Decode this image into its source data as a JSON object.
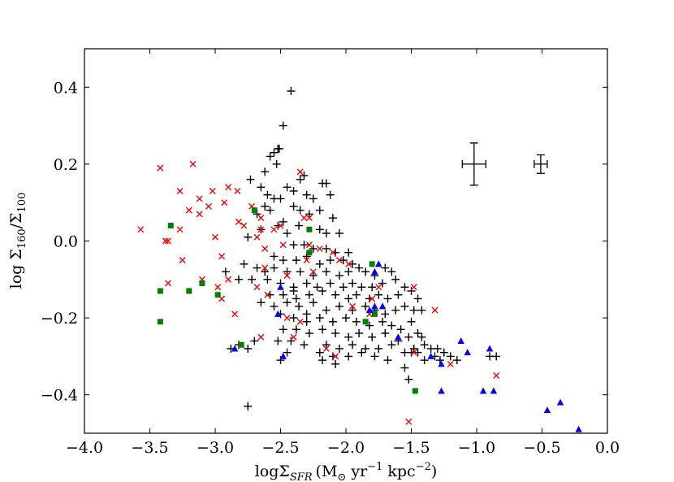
{
  "chart_data": {
    "type": "scatter",
    "title": "",
    "xlabel": "logΣ_SFR (M_⊙ yr^-1 kpc^-2)",
    "ylabel": "log Σ_160/Σ_100",
    "xlim": [
      -4.0,
      0.0
    ],
    "ylim": [
      -0.5,
      0.5
    ],
    "x_ticks": [
      -4.0,
      -3.5,
      -3.0,
      -2.5,
      -2.0,
      -1.5,
      -1.0,
      -0.5,
      0.0
    ],
    "x_tick_labels": [
      "−4.0",
      "−3.5",
      "−3.0",
      "−2.5",
      "−2.0",
      "−1.5",
      "−1.0",
      "−0.5",
      "0.0"
    ],
    "y_ticks": [
      -0.4,
      -0.2,
      0.0,
      0.2,
      0.4
    ],
    "y_tick_labels": [
      "−0.4",
      "−0.2",
      "0.0",
      "0.2",
      "0.4"
    ],
    "grid": false,
    "colors": {
      "black": "#000000",
      "red": "#ff0000",
      "green": "#007f00",
      "blue": "#0000ff"
    },
    "x_label_parts": {
      "main": "logΣ",
      "sub": "SFR",
      "unit_open": "(M",
      "sun": "⊙",
      "unit_yr": " yr",
      "exp1": "−1",
      "unit_kpc": " kpc",
      "exp2": "−2",
      "unit_close": ")"
    },
    "y_label_parts": {
      "main": "log Σ",
      "sub1": "160",
      "slash": "/Σ",
      "sub2": "100"
    },
    "error_bars": [
      {
        "x": -1.02,
        "y": 0.2,
        "xerr": 0.09,
        "yerr": 0.055
      },
      {
        "x": -0.51,
        "y": 0.2,
        "xerr": 0.05,
        "yerr": 0.024
      }
    ],
    "series": [
      {
        "name": "black plus",
        "marker": "plus",
        "color": "#000000",
        "points": [
          [
            -2.42,
            0.39
          ],
          [
            -2.48,
            0.3
          ],
          [
            -2.52,
            0.24
          ],
          [
            -2.55,
            0.23
          ],
          [
            -2.51,
            0.24
          ],
          [
            -2.58,
            0.22
          ],
          [
            -2.53,
            0.2
          ],
          [
            -2.62,
            0.18
          ],
          [
            -2.35,
            0.16
          ],
          [
            -2.32,
            0.17
          ],
          [
            -2.18,
            0.15
          ],
          [
            -2.15,
            0.15
          ],
          [
            -2.73,
            0.16
          ],
          [
            -2.65,
            0.14
          ],
          [
            -2.45,
            0.14
          ],
          [
            -2.4,
            0.13
          ],
          [
            -2.3,
            0.12
          ],
          [
            -2.25,
            0.11
          ],
          [
            -2.12,
            0.12
          ],
          [
            -2.6,
            0.12
          ],
          [
            -2.55,
            0.11
          ],
          [
            -2.5,
            0.11
          ],
          [
            -2.62,
            0.09
          ],
          [
            -2.68,
            0.07
          ],
          [
            -2.58,
            0.08
          ],
          [
            -2.4,
            0.09
          ],
          [
            -2.35,
            0.08
          ],
          [
            -2.28,
            0.07
          ],
          [
            -2.2,
            0.08
          ],
          [
            -2.1,
            0.06
          ],
          [
            -2.48,
            0.05
          ],
          [
            -2.52,
            0.04
          ],
          [
            -2.36,
            0.04
          ],
          [
            -2.65,
            0.03
          ],
          [
            -2.2,
            0.03
          ],
          [
            -2.15,
            0.02
          ],
          [
            -2.45,
            0.02
          ],
          [
            -2.05,
            0.02
          ],
          [
            -2.75,
            0.01
          ],
          [
            -2.4,
            -0.01
          ],
          [
            -2.32,
            -0.01
          ],
          [
            -2.25,
            -0.02
          ],
          [
            -2.15,
            -0.02
          ],
          [
            -2.08,
            -0.03
          ],
          [
            -1.98,
            -0.03
          ],
          [
            -2.55,
            -0.04
          ],
          [
            -2.48,
            -0.05
          ],
          [
            -2.38,
            -0.05
          ],
          [
            -2.3,
            -0.04
          ],
          [
            -2.2,
            -0.06
          ],
          [
            -2.12,
            -0.05
          ],
          [
            -2.02,
            -0.05
          ],
          [
            -1.95,
            -0.06
          ],
          [
            -2.78,
            -0.06
          ],
          [
            -2.68,
            -0.07
          ],
          [
            -2.62,
            -0.08
          ],
          [
            -2.55,
            -0.07
          ],
          [
            -2.45,
            -0.08
          ],
          [
            -2.35,
            -0.08
          ],
          [
            -2.25,
            -0.09
          ],
          [
            -2.15,
            -0.08
          ],
          [
            -2.05,
            -0.09
          ],
          [
            -1.98,
            -0.08
          ],
          [
            -1.9,
            -0.07
          ],
          [
            -1.85,
            -0.08
          ],
          [
            -1.78,
            -0.09
          ],
          [
            -1.7,
            -0.07
          ],
          [
            -1.65,
            -0.08
          ],
          [
            -2.92,
            -0.08
          ],
          [
            -2.82,
            -0.1
          ],
          [
            -2.72,
            -0.1
          ],
          [
            -2.6,
            -0.1
          ],
          [
            -2.5,
            -0.11
          ],
          [
            -2.4,
            -0.12
          ],
          [
            -2.3,
            -0.11
          ],
          [
            -2.22,
            -0.12
          ],
          [
            -2.12,
            -0.11
          ],
          [
            -2.02,
            -0.12
          ],
          [
            -1.95,
            -0.11
          ],
          [
            -1.88,
            -0.12
          ],
          [
            -1.8,
            -0.12
          ],
          [
            -1.72,
            -0.11
          ],
          [
            -1.62,
            -0.1
          ],
          [
            -1.55,
            -0.12
          ],
          [
            -2.58,
            -0.14
          ],
          [
            -2.48,
            -0.14
          ],
          [
            -2.38,
            -0.15
          ],
          [
            -2.28,
            -0.14
          ],
          [
            -2.18,
            -0.13
          ],
          [
            -2.08,
            -0.14
          ],
          [
            -1.98,
            -0.15
          ],
          [
            -1.92,
            -0.14
          ],
          [
            -1.82,
            -0.15
          ],
          [
            -1.75,
            -0.14
          ],
          [
            -1.68,
            -0.15
          ],
          [
            -1.6,
            -0.14
          ],
          [
            -1.5,
            -0.13
          ],
          [
            -1.45,
            -0.15
          ],
          [
            -2.65,
            -0.16
          ],
          [
            -2.55,
            -0.17
          ],
          [
            -2.45,
            -0.16
          ],
          [
            -2.36,
            -0.17
          ],
          [
            -2.25,
            -0.16
          ],
          [
            -2.15,
            -0.18
          ],
          [
            -2.05,
            -0.17
          ],
          [
            -1.95,
            -0.18
          ],
          [
            -1.85,
            -0.17
          ],
          [
            -1.78,
            -0.18
          ],
          [
            -1.7,
            -0.19
          ],
          [
            -1.62,
            -0.18
          ],
          [
            -1.55,
            -0.17
          ],
          [
            -1.48,
            -0.18
          ],
          [
            -1.42,
            -0.18
          ],
          [
            -2.5,
            -0.19
          ],
          [
            -2.4,
            -0.2
          ],
          [
            -2.3,
            -0.21
          ],
          [
            -2.2,
            -0.2
          ],
          [
            -2.1,
            -0.21
          ],
          [
            -2.0,
            -0.2
          ],
          [
            -1.92,
            -0.21
          ],
          [
            -1.82,
            -0.22
          ],
          [
            -1.72,
            -0.21
          ],
          [
            -1.65,
            -0.22
          ],
          [
            -1.58,
            -0.23
          ],
          [
            -1.5,
            -0.21
          ],
          [
            -1.45,
            -0.24
          ],
          [
            -2.48,
            -0.23
          ],
          [
            -2.38,
            -0.23
          ],
          [
            -2.28,
            -0.24
          ],
          [
            -2.18,
            -0.23
          ],
          [
            -2.08,
            -0.24
          ],
          [
            -1.98,
            -0.25
          ],
          [
            -1.9,
            -0.24
          ],
          [
            -1.8,
            -0.25
          ],
          [
            -1.7,
            -0.24
          ],
          [
            -1.6,
            -0.26
          ],
          [
            -1.52,
            -0.25
          ],
          [
            -1.42,
            -0.25
          ],
          [
            -2.52,
            -0.26
          ],
          [
            -2.42,
            -0.26
          ],
          [
            -2.32,
            -0.27
          ],
          [
            -2.15,
            -0.27
          ],
          [
            -2.05,
            -0.28
          ],
          [
            -1.95,
            -0.27
          ],
          [
            -1.85,
            -0.28
          ],
          [
            -1.75,
            -0.28
          ],
          [
            -1.65,
            -0.27
          ],
          [
            -1.55,
            -0.29
          ],
          [
            -1.48,
            -0.28
          ],
          [
            -1.4,
            -0.27
          ],
          [
            -1.35,
            -0.28
          ],
          [
            -1.3,
            -0.28
          ],
          [
            -2.45,
            -0.29
          ],
          [
            -2.2,
            -0.29
          ],
          [
            -2.1,
            -0.3
          ],
          [
            -1.98,
            -0.3
          ],
          [
            -1.88,
            -0.29
          ],
          [
            -1.78,
            -0.3
          ],
          [
            -1.68,
            -0.31
          ],
          [
            -1.5,
            -0.29
          ],
          [
            -1.45,
            -0.29
          ],
          [
            -1.32,
            -0.3
          ],
          [
            -1.25,
            -0.29
          ],
          [
            -1.2,
            -0.3
          ],
          [
            -2.5,
            -0.31
          ],
          [
            -2.18,
            -0.31
          ],
          [
            -2.08,
            -0.32
          ],
          [
            -1.4,
            -0.31
          ],
          [
            -1.28,
            -0.31
          ],
          [
            -1.15,
            -0.31
          ],
          [
            -0.9,
            -0.3
          ],
          [
            -0.85,
            -0.3
          ],
          [
            -1.55,
            -0.33
          ],
          [
            -1.52,
            -0.36
          ],
          [
            -2.75,
            -0.28
          ],
          [
            -2.82,
            -0.27
          ],
          [
            -2.7,
            -0.26
          ],
          [
            -2.88,
            -0.28
          ],
          [
            -2.75,
            -0.43
          ],
          [
            -2.4,
            -0.13
          ],
          [
            -2.3,
            -0.19
          ]
        ]
      },
      {
        "name": "red x",
        "marker": "x",
        "color": "#ff0000",
        "points": [
          [
            -3.42,
            0.19
          ],
          [
            -3.17,
            0.2
          ],
          [
            -2.35,
            0.18
          ],
          [
            -2.9,
            0.14
          ],
          [
            -3.27,
            0.13
          ],
          [
            -3.02,
            0.13
          ],
          [
            -2.83,
            0.13
          ],
          [
            -3.12,
            0.11
          ],
          [
            -2.93,
            0.1
          ],
          [
            -3.05,
            0.09
          ],
          [
            -2.72,
            0.09
          ],
          [
            -3.2,
            0.08
          ],
          [
            -3.12,
            0.07
          ],
          [
            -2.65,
            0.06
          ],
          [
            -2.32,
            0.06
          ],
          [
            -2.28,
            0.06
          ],
          [
            -3.57,
            0.03
          ],
          [
            -2.82,
            0.05
          ],
          [
            -2.78,
            0.04
          ],
          [
            -3.27,
            0.03
          ],
          [
            -2.5,
            0.04
          ],
          [
            -2.65,
            0.03
          ],
          [
            -2.55,
            0.03
          ],
          [
            -3.0,
            0.01
          ],
          [
            -3.38,
            0.0
          ],
          [
            -3.36,
            0.0
          ],
          [
            -2.68,
            0.01
          ],
          [
            -2.48,
            -0.01
          ],
          [
            -2.62,
            -0.02
          ],
          [
            -2.28,
            -0.01
          ],
          [
            -2.2,
            -0.02
          ],
          [
            -2.1,
            -0.03
          ],
          [
            -2.95,
            -0.04
          ],
          [
            -3.25,
            -0.05
          ],
          [
            -2.3,
            -0.05
          ],
          [
            -2.05,
            -0.05
          ],
          [
            -1.98,
            -0.06
          ],
          [
            -2.62,
            -0.07
          ],
          [
            -3.1,
            -0.1
          ],
          [
            -2.9,
            -0.1
          ],
          [
            -2.25,
            -0.08
          ],
          [
            -2.45,
            -0.09
          ],
          [
            -3.36,
            -0.11
          ],
          [
            -2.98,
            -0.12
          ],
          [
            -2.68,
            -0.12
          ],
          [
            -1.75,
            -0.12
          ],
          [
            -1.48,
            -0.12
          ],
          [
            -2.95,
            -0.15
          ],
          [
            -2.6,
            -0.14
          ],
          [
            -1.8,
            -0.15
          ],
          [
            -1.95,
            -0.17
          ],
          [
            -2.85,
            -0.19
          ],
          [
            -1.32,
            -0.18
          ],
          [
            -1.82,
            -0.19
          ],
          [
            -2.45,
            -0.2
          ],
          [
            -2.35,
            -0.21
          ],
          [
            -2.65,
            -0.25
          ],
          [
            -2.4,
            -0.25
          ],
          [
            -2.15,
            -0.28
          ],
          [
            -2.08,
            -0.3
          ],
          [
            -1.48,
            -0.29
          ],
          [
            -1.2,
            -0.32
          ],
          [
            -0.85,
            -0.35
          ],
          [
            -1.52,
            -0.47
          ]
        ]
      },
      {
        "name": "green square",
        "marker": "square",
        "color": "#007f00",
        "points": [
          [
            -2.7,
            0.08
          ],
          [
            -2.28,
            0.03
          ],
          [
            -3.34,
            0.04
          ],
          [
            -2.28,
            -0.03
          ],
          [
            -1.8,
            -0.06
          ],
          [
            -3.1,
            -0.11
          ],
          [
            -3.2,
            -0.13
          ],
          [
            -3.42,
            -0.13
          ],
          [
            -2.98,
            -0.14
          ],
          [
            -1.78,
            -0.19
          ],
          [
            -1.85,
            -0.21
          ],
          [
            -3.42,
            -0.21
          ],
          [
            -2.8,
            -0.27
          ],
          [
            -1.47,
            -0.39
          ]
        ]
      },
      {
        "name": "blue triangle",
        "marker": "triangle",
        "color": "#0000ff",
        "points": [
          [
            -1.75,
            -0.06
          ],
          [
            -1.78,
            -0.08
          ],
          [
            -2.5,
            -0.12
          ],
          [
            -1.72,
            -0.17
          ],
          [
            -1.82,
            -0.18
          ],
          [
            -1.78,
            -0.17
          ],
          [
            -2.52,
            -0.19
          ],
          [
            -2.48,
            -0.3
          ],
          [
            -2.85,
            -0.28
          ],
          [
            -1.6,
            -0.25
          ],
          [
            -1.35,
            -0.3
          ],
          [
            -1.27,
            -0.32
          ],
          [
            -1.12,
            -0.26
          ],
          [
            -1.07,
            -0.29
          ],
          [
            -0.9,
            -0.28
          ],
          [
            -1.27,
            -0.39
          ],
          [
            -0.95,
            -0.39
          ],
          [
            -0.87,
            -0.39
          ],
          [
            -0.46,
            -0.44
          ],
          [
            -0.36,
            -0.42
          ],
          [
            -0.22,
            -0.49
          ]
        ]
      }
    ]
  }
}
